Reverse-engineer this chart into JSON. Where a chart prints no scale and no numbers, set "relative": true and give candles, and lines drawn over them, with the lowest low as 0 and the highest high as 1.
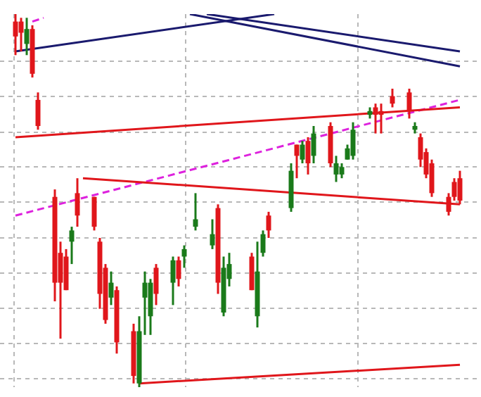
{
  "chart_data": {
    "type": "candlestick",
    "relative": true,
    "grid": true,
    "legend": false,
    "tick_labels": false,
    "categories": [
      null,
      null,
      null,
      null,
      null,
      null,
      null,
      null,
      null,
      null,
      null,
      null,
      null,
      null,
      null,
      null,
      null,
      null,
      null,
      null,
      null,
      null,
      null,
      null,
      null,
      null,
      null,
      null,
      null,
      null,
      null,
      null,
      null,
      null,
      null,
      null,
      null,
      null,
      null,
      null,
      null,
      null,
      null,
      null,
      null,
      null,
      null,
      null,
      null,
      null,
      null,
      null,
      null,
      null,
      null,
      null,
      null,
      null,
      null,
      null,
      null,
      null,
      null,
      null,
      null,
      null,
      null,
      null,
      null,
      null,
      null,
      null,
      null,
      null,
      null,
      null,
      null,
      null,
      null,
      null
    ],
    "ohlc": [
      [
        0.98,
        1.0,
        0.89,
        0.94
      ],
      [
        0.98,
        0.99,
        0.9,
        0.95
      ],
      [
        0.92,
        0.99,
        0.89,
        0.96
      ],
      [
        0.96,
        0.97,
        0.83,
        0.84
      ],
      [
        0.77,
        0.79,
        0.69,
        0.7
      ],
      null,
      null,
      [
        0.51,
        0.53,
        0.23,
        0.28
      ],
      [
        0.36,
        0.39,
        0.13,
        0.28
      ],
      [
        0.35,
        0.37,
        0.26,
        0.26
      ],
      [
        0.39,
        0.43,
        0.33,
        0.42
      ],
      [
        0.52,
        0.56,
        0.43,
        0.46
      ],
      null,
      null,
      [
        0.51,
        0.51,
        0.42,
        0.43
      ],
      [
        0.39,
        0.4,
        0.21,
        0.25
      ],
      [
        0.32,
        0.33,
        0.17,
        0.18
      ],
      [
        0.24,
        0.31,
        0.22,
        0.28
      ],
      [
        0.26,
        0.27,
        0.09,
        0.12
      ],
      null,
      null,
      [
        0.15,
        0.17,
        0.01,
        0.03
      ],
      [
        0.01,
        0.19,
        0.0,
        0.15
      ],
      [
        0.24,
        0.31,
        0.14,
        0.28
      ],
      [
        0.19,
        0.29,
        0.14,
        0.28
      ],
      [
        0.32,
        0.33,
        0.22,
        0.25
      ],
      null,
      null,
      [
        0.28,
        0.35,
        0.22,
        0.34
      ],
      [
        0.34,
        0.35,
        0.27,
        0.29
      ],
      [
        0.35,
        0.38,
        0.32,
        0.37
      ],
      null,
      [
        0.43,
        0.52,
        0.42,
        0.45
      ],
      null,
      null,
      [
        0.38,
        0.45,
        0.37,
        0.41
      ],
      [
        0.48,
        0.49,
        0.25,
        0.28
      ],
      [
        0.2,
        0.35,
        0.19,
        0.32
      ],
      [
        0.29,
        0.36,
        0.27,
        0.33
      ],
      null,
      null,
      null,
      [
        0.35,
        0.36,
        0.26,
        0.26
      ],
      [
        0.19,
        0.39,
        0.16,
        0.31
      ],
      [
        0.36,
        0.42,
        0.35,
        0.41
      ],
      [
        0.46,
        0.47,
        0.4,
        0.42
      ],
      null,
      null,
      null,
      [
        0.48,
        0.6,
        0.47,
        0.58
      ],
      [
        0.65,
        0.65,
        0.56,
        0.62
      ],
      [
        0.61,
        0.66,
        0.6,
        0.65
      ],
      [
        0.66,
        0.67,
        0.57,
        0.6
      ],
      [
        0.62,
        0.7,
        0.6,
        0.68
      ],
      null,
      null,
      [
        0.7,
        0.71,
        0.59,
        0.6
      ],
      [
        0.57,
        0.62,
        0.55,
        0.6
      ],
      [
        0.57,
        0.6,
        0.56,
        0.59
      ],
      [
        0.61,
        0.65,
        0.61,
        0.64
      ],
      [
        0.62,
        0.71,
        0.61,
        0.69
      ],
      null,
      null,
      [
        0.73,
        0.75,
        0.72,
        0.74
      ],
      [
        0.75,
        0.76,
        0.68,
        0.73
      ],
      [
        0.74,
        0.76,
        0.68,
        0.73
      ],
      null,
      [
        0.78,
        0.8,
        0.75,
        0.76
      ],
      null,
      null,
      [
        0.79,
        0.8,
        0.72,
        0.74
      ],
      [
        0.69,
        0.71,
        0.68,
        0.7
      ],
      [
        0.67,
        0.68,
        0.59,
        0.61
      ],
      [
        0.63,
        0.64,
        0.56,
        0.57
      ],
      [
        0.6,
        0.61,
        0.51,
        0.52
      ],
      null,
      null,
      [
        0.51,
        0.52,
        0.46,
        0.47
      ],
      [
        0.55,
        0.56,
        0.5,
        0.51
      ],
      [
        0.56,
        0.58,
        0.49,
        0.5
      ]
    ],
    "colors": [
      "#e0161b",
      "#e0161b",
      "#1a7a1a",
      "#e0161b",
      "#e0161b",
      null,
      null,
      "#e0161b",
      "#e0161b",
      "#e0161b",
      "#1a7a1a",
      "#e0161b",
      null,
      null,
      "#e0161b",
      "#e0161b",
      "#e0161b",
      "#1a7a1a",
      "#e0161b",
      null,
      null,
      "#e0161b",
      "#1a7a1a",
      "#1a7a1a",
      "#1a7a1a",
      "#e0161b",
      null,
      null,
      "#1a7a1a",
      "#e0161b",
      "#1a7a1a",
      null,
      "#1a7a1a",
      null,
      null,
      "#1a7a1a",
      "#e0161b",
      "#1a7a1a",
      "#1a7a1a",
      null,
      null,
      null,
      "#e0161b",
      "#1a7a1a",
      "#1a7a1a",
      "#e0161b",
      null,
      null,
      null,
      "#1a7a1a",
      "#e0161b",
      "#1a7a1a",
      "#e0161b",
      "#1a7a1a",
      null,
      null,
      "#e0161b",
      "#1a7a1a",
      "#1a7a1a",
      "#1a7a1a",
      "#1a7a1a",
      null,
      null,
      "#1a7a1a",
      "#e0161b",
      "#e0161b",
      null,
      "#e0161b",
      null,
      null,
      "#e0161b",
      "#1a7a1a",
      "#e0161b",
      "#e0161b",
      "#e0161b",
      null,
      null,
      "#e0161b",
      "#e0161b",
      "#e0161b"
    ],
    "series": [
      {
        "type": "line",
        "color": "#e0161b",
        "line_style": "solid",
        "values": [
          0.67,
          null,
          null,
          null,
          null,
          null,
          null,
          null,
          null,
          null,
          null,
          null,
          null,
          null,
          null,
          null,
          null,
          null,
          null,
          null,
          null,
          null,
          null,
          null,
          null,
          null,
          null,
          null,
          null,
          null,
          null,
          null,
          null,
          null,
          null,
          null,
          null,
          null,
          null,
          null,
          null,
          null,
          null,
          null,
          null,
          null,
          null,
          null,
          null,
          null,
          null,
          null,
          null,
          null,
          null,
          null,
          null,
          null,
          null,
          null,
          null,
          null,
          null,
          null,
          null,
          null,
          null,
          null,
          null,
          null,
          null,
          null,
          null,
          null,
          null,
          null,
          null,
          null,
          null,
          0.75
        ]
      },
      {
        "type": "line",
        "color": "#e0161b",
        "line_style": "solid",
        "values": [
          null,
          null,
          null,
          null,
          null,
          null,
          null,
          null,
          null,
          null,
          null,
          null,
          0.56,
          null,
          null,
          null,
          null,
          null,
          null,
          null,
          null,
          null,
          null,
          null,
          null,
          null,
          null,
          null,
          null,
          null,
          null,
          null,
          null,
          null,
          null,
          null,
          null,
          null,
          null,
          null,
          null,
          null,
          null,
          null,
          null,
          null,
          null,
          null,
          null,
          null,
          null,
          null,
          null,
          null,
          null,
          null,
          null,
          null,
          null,
          null,
          null,
          null,
          null,
          null,
          null,
          null,
          null,
          null,
          null,
          null,
          null,
          null,
          null,
          null,
          null,
          null,
          null,
          null,
          null,
          0.49
        ]
      },
      {
        "type": "line",
        "color": "#e0161b",
        "line_style": "solid",
        "values": [
          null,
          null,
          null,
          null,
          null,
          null,
          null,
          null,
          null,
          null,
          null,
          null,
          null,
          null,
          null,
          null,
          null,
          null,
          null,
          null,
          null,
          null,
          0.01,
          null,
          null,
          null,
          null,
          null,
          null,
          null,
          null,
          null,
          null,
          null,
          null,
          null,
          null,
          null,
          null,
          null,
          null,
          null,
          null,
          null,
          null,
          null,
          null,
          null,
          null,
          null,
          null,
          null,
          null,
          null,
          null,
          null,
          null,
          null,
          null,
          null,
          null,
          null,
          null,
          null,
          null,
          null,
          null,
          null,
          null,
          null,
          null,
          null,
          null,
          null,
          null,
          null,
          null,
          null,
          null,
          0.06
        ]
      },
      {
        "type": "line",
        "color": "#dd22dd",
        "line_style": "dashed",
        "values": [
          null,
          null,
          null,
          0.98,
          null,
          0.99,
          null,
          null,
          null,
          null,
          null,
          null,
          null,
          null,
          null,
          null,
          null,
          null,
          null,
          null,
          null,
          null,
          null,
          null,
          null,
          null,
          null,
          null,
          null,
          null,
          null,
          null,
          null,
          null,
          null,
          null,
          null,
          null,
          null,
          null,
          null,
          null,
          null,
          null,
          null,
          null,
          null,
          null,
          null,
          null,
          null,
          null,
          null,
          null,
          null,
          null,
          null,
          null,
          null,
          null,
          null,
          null,
          null,
          null,
          null,
          null,
          null,
          null,
          null,
          null,
          null,
          null,
          null,
          null,
          null,
          null,
          null,
          null,
          null,
          null
        ]
      },
      {
        "type": "line",
        "color": "#dd22dd",
        "line_style": "dashed",
        "values": [
          0.46,
          null,
          null,
          null,
          null,
          null,
          null,
          null,
          null,
          null,
          null,
          null,
          null,
          null,
          null,
          null,
          null,
          null,
          null,
          null,
          null,
          null,
          null,
          null,
          null,
          null,
          null,
          null,
          null,
          null,
          null,
          null,
          null,
          null,
          null,
          null,
          null,
          null,
          null,
          null,
          null,
          null,
          null,
          null,
          null,
          null,
          null,
          null,
          null,
          null,
          null,
          null,
          null,
          null,
          null,
          null,
          null,
          null,
          null,
          null,
          null,
          null,
          null,
          null,
          null,
          null,
          null,
          null,
          null,
          null,
          null,
          null,
          null,
          null,
          null,
          null,
          null,
          null,
          null,
          0.77
        ]
      },
      {
        "type": "line",
        "color": "#1a1a6e",
        "line_style": "solid",
        "values": [
          0.9,
          null,
          null,
          null,
          null,
          null,
          null,
          null,
          null,
          null,
          null,
          null,
          null,
          null,
          null,
          null,
          null,
          null,
          null,
          null,
          null,
          null,
          null,
          null,
          null,
          null,
          null,
          null,
          null,
          null,
          null,
          null,
          null,
          null,
          null,
          null,
          null,
          null,
          null,
          null,
          null,
          null,
          null,
          null,
          null,
          null,
          1.0,
          null,
          null,
          null,
          null,
          null,
          null,
          null,
          null,
          null,
          null,
          null,
          null,
          null,
          null,
          null,
          null,
          null,
          null,
          null,
          null,
          null,
          null,
          null,
          null,
          null,
          null,
          null,
          null,
          null,
          null,
          null,
          null,
          null
        ]
      },
      {
        "type": "line",
        "color": "#1a1a6e",
        "line_style": "solid",
        "values": [
          null,
          null,
          null,
          null,
          null,
          null,
          null,
          null,
          null,
          null,
          null,
          null,
          null,
          null,
          null,
          null,
          null,
          null,
          null,
          null,
          null,
          null,
          null,
          null,
          null,
          null,
          null,
          null,
          null,
          null,
          null,
          null,
          null,
          null,
          1.0,
          null,
          null,
          null,
          null,
          null,
          null,
          null,
          null,
          null,
          null,
          null,
          null,
          null,
          null,
          null,
          null,
          null,
          null,
          null,
          null,
          null,
          null,
          null,
          null,
          null,
          null,
          null,
          null,
          null,
          null,
          null,
          null,
          null,
          null,
          null,
          null,
          null,
          null,
          null,
          null,
          null,
          null,
          null,
          null,
          0.9
        ]
      },
      {
        "type": "line",
        "color": "#1a1a6e",
        "line_style": "solid",
        "values": [
          null,
          null,
          null,
          null,
          null,
          null,
          null,
          null,
          null,
          null,
          null,
          null,
          null,
          null,
          null,
          null,
          null,
          null,
          null,
          null,
          null,
          null,
          null,
          null,
          null,
          null,
          null,
          null,
          null,
          null,
          null,
          1.0,
          null,
          null,
          null,
          null,
          null,
          null,
          null,
          null,
          null,
          null,
          null,
          null,
          null,
          null,
          null,
          null,
          null,
          null,
          null,
          null,
          null,
          null,
          null,
          null,
          null,
          null,
          null,
          null,
          null,
          null,
          null,
          null,
          null,
          null,
          null,
          null,
          null,
          null,
          null,
          null,
          null,
          null,
          null,
          null,
          null,
          null,
          null,
          0.86
        ]
      }
    ]
  }
}
